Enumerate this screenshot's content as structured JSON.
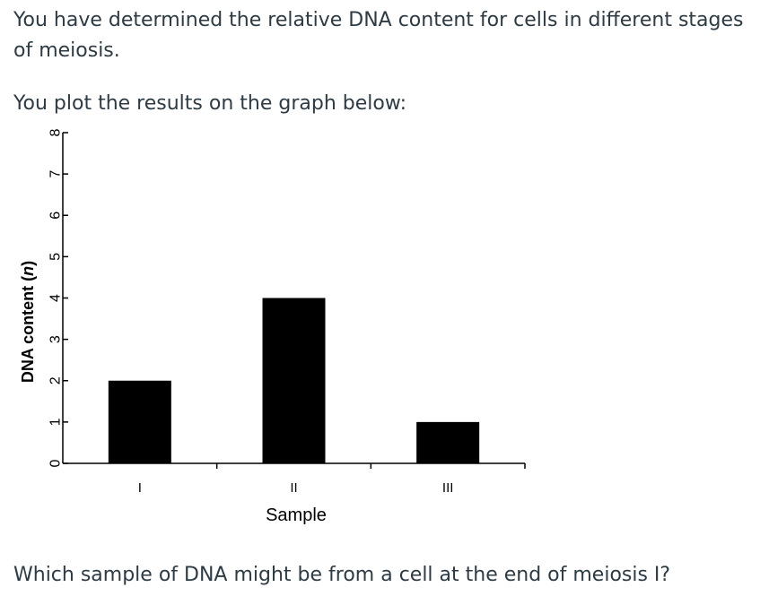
{
  "intro_text": "You have determined the relative DNA content for cells in different stages of meiosis.",
  "prompt_text": "You plot the results on the graph below:",
  "question_text": "Which sample of DNA might be from a cell at the end of meiosis I?",
  "chart_data": {
    "type": "bar",
    "categories": [
      "I",
      "II",
      "III"
    ],
    "values": [
      2,
      4,
      1
    ],
    "xlabel": "Sample",
    "ylabel_main": "DNA content (",
    "ylabel_unit": "n",
    "ylabel_close": ")",
    "ylim": [
      0,
      8
    ],
    "yticks": [
      0,
      1,
      2,
      3,
      4,
      5,
      6,
      7,
      8
    ],
    "grid": false,
    "bar_color": "#000000"
  }
}
